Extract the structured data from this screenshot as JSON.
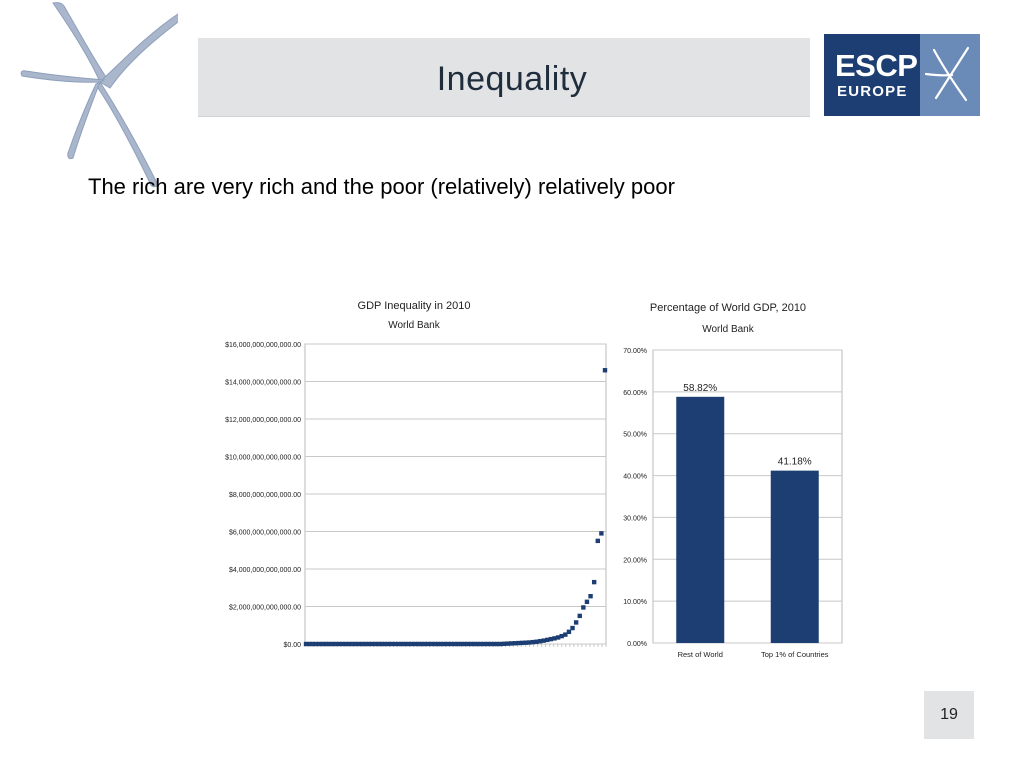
{
  "slide": {
    "title": "Inequality",
    "subtitle": "The rich are very rich and the poor (relatively) relatively poor",
    "page_number": "19"
  },
  "logo": {
    "line1": "ESCP",
    "line2": "EUROPE",
    "colors": {
      "dark": "#1c3e72",
      "light": "#6a8bb8"
    }
  },
  "decoration": {
    "icon": "star-icon",
    "color": "#a9b6cc"
  },
  "chart_data": [
    {
      "type": "scatter",
      "title": "GDP Inequality in 2010",
      "subtitle": "World Bank",
      "xlabel": "",
      "ylabel": "",
      "ylim": [
        0,
        16000000000000
      ],
      "y_ticks": [
        0,
        2000000000000,
        4000000000000,
        6000000000000,
        8000000000000,
        10000000000000,
        12000000000000,
        14000000000000,
        16000000000000
      ],
      "y_tick_labels": [
        "$0.00",
        "$2,000,000,000,000.00",
        "$4,000,000,000,000.00",
        "$6,000,000,000,000.00",
        "$8,000,000,000,000.00",
        "$10,000,000,000,000.00",
        "$12,000,000,000,000.00",
        "$14,000,000,000,000.00",
        "$16,000,000,000,000.00"
      ],
      "grid": true,
      "color": "#1c3e72",
      "values": [
        10000000000,
        20000000000,
        30000000000,
        40000000000,
        50000000000,
        60000000000,
        70000000000,
        80000000000,
        100000000000,
        120000000000,
        150000000000,
        180000000000,
        220000000000,
        260000000000,
        300000000000,
        350000000000,
        420000000000,
        500000000000,
        650000000000,
        850000000000,
        1150000000000,
        1500000000000,
        1950000000000,
        2250000000000,
        2550000000000,
        3300000000000,
        5500000000000,
        5900000000000,
        14600000000000
      ]
    },
    {
      "type": "bar",
      "title": "Percentage of World GDP, 2010",
      "subtitle": "World Bank",
      "categories": [
        "Rest of World",
        "Top 1% of Countries"
      ],
      "values": [
        58.82,
        41.18
      ],
      "data_labels": [
        "58.82%",
        "41.18%"
      ],
      "ylim": [
        0,
        70
      ],
      "y_ticks": [
        0,
        10,
        20,
        30,
        40,
        50,
        60,
        70
      ],
      "y_tick_labels": [
        "0.00%",
        "10.00%",
        "20.00%",
        "30.00%",
        "40.00%",
        "50.00%",
        "60.00%",
        "70.00%"
      ],
      "grid": true,
      "color": "#1c3e72",
      "xlabel": "",
      "ylabel": ""
    }
  ]
}
